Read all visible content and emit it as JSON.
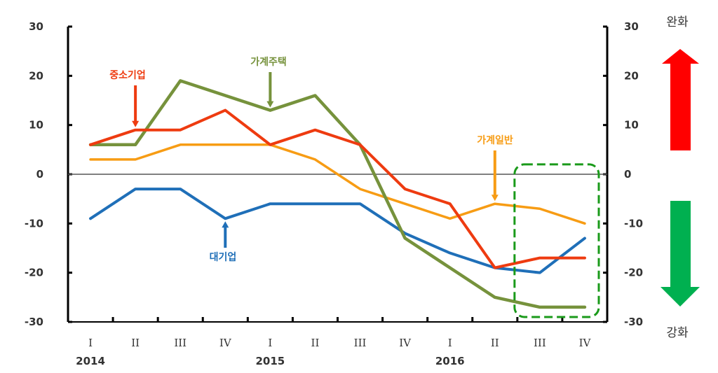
{
  "chart_data": {
    "type": "line",
    "title": "",
    "xlabel": "",
    "ylabel": "",
    "ylim": [
      -30,
      30
    ],
    "y_ticks": [
      30,
      20,
      10,
      0,
      -10,
      -20,
      -30
    ],
    "y_tick_labels": [
      "30",
      "20",
      "10",
      "0",
      "-10",
      "-20",
      "-30"
    ],
    "secondary_y_tick_labels": [
      "30",
      "20",
      "10",
      "0",
      "-10",
      "-20",
      "-30"
    ],
    "categories": [
      "I",
      "II",
      "III",
      "IV",
      "I",
      "II",
      "III",
      "IV",
      "I",
      "II",
      "III",
      "IV"
    ],
    "years": [
      {
        "label": "2014",
        "category_index": 0
      },
      {
        "label": "2015",
        "category_index": 4
      },
      {
        "label": "2016",
        "category_index": 8
      }
    ],
    "grid": false,
    "zero_line": true,
    "series": [
      {
        "name": "대기업",
        "color": "#1f6fb8",
        "values": [
          -9,
          -3,
          -3,
          -9,
          -6,
          -6,
          -6,
          -12,
          -16,
          -19,
          -20,
          -13
        ]
      },
      {
        "name": "중소기업",
        "color": "#ee3b10",
        "values": [
          6,
          9,
          9,
          13,
          6,
          9,
          6,
          -3,
          -6,
          -19,
          -17,
          -17
        ]
      },
      {
        "name": "가계주택",
        "color": "#76923c",
        "values": [
          6,
          6,
          19,
          16,
          13,
          16,
          6,
          -13,
          -19,
          -25,
          -27,
          -27
        ]
      },
      {
        "name": "가계일반",
        "color": "#f79c14",
        "values": [
          3,
          3,
          6,
          6,
          6,
          3,
          -3,
          -6,
          -9,
          -6,
          -7,
          -10
        ]
      }
    ],
    "annotations": [
      {
        "text": "중소기업",
        "series": "중소기업",
        "category_index": 1,
        "value": 9,
        "direction": "down"
      },
      {
        "text": "가계주택",
        "series": "가계주택",
        "category_index": 4,
        "value": 13,
        "direction": "down"
      },
      {
        "text": "가계일반",
        "series": "가계일반",
        "category_index": 9,
        "value": -6,
        "direction": "down"
      },
      {
        "text": "대기업",
        "series": "대기업",
        "category_index": 3,
        "value": -9,
        "direction": "up"
      }
    ],
    "highlight_box": {
      "from_category_index": 10,
      "to_category_index": 11,
      "color": "#1a9a1a",
      "style": "dashed"
    },
    "side_indicators": {
      "top": {
        "label": "완화",
        "arrow": "up",
        "color": "#ff0000"
      },
      "bottom": {
        "label": "강화",
        "arrow": "down",
        "color": "#00b050"
      }
    }
  }
}
